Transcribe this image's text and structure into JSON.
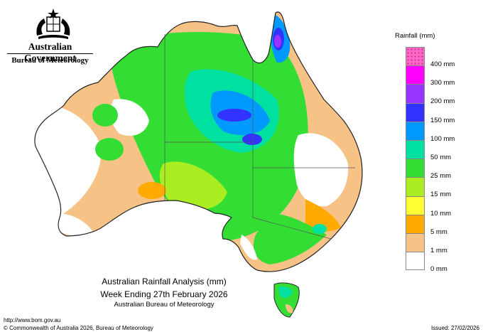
{
  "header": {
    "government": "Australian Government",
    "bureau": "Bureau of Meteorology"
  },
  "legend": {
    "title": "Rainfall (mm)",
    "items": [
      {
        "label": "400 mm",
        "color": "#ff66cc"
      },
      {
        "label": "300 mm",
        "color": "#ff00ff"
      },
      {
        "label": "200 mm",
        "color": "#9933ff"
      },
      {
        "label": "150 mm",
        "color": "#3333ff"
      },
      {
        "label": "100 mm",
        "color": "#0099ff"
      },
      {
        "label": "50 mm",
        "color": "#00e0a0"
      },
      {
        "label": "25 mm",
        "color": "#33dd33"
      },
      {
        "label": "15 mm",
        "color": "#aaee22"
      },
      {
        "label": "10 mm",
        "color": "#ffff33"
      },
      {
        "label": "5 mm",
        "color": "#ffaa00"
      },
      {
        "label": "1 mm",
        "color": "#f6c286"
      },
      {
        "label": "0 mm",
        "color": "#ffffff"
      }
    ]
  },
  "map": {
    "title_line1": "Australian Rainfall Analysis (mm)",
    "title_line2": "Week Ending 27th February 2026",
    "subtitle": "Australian Bureau of Meteorology"
  },
  "footer": {
    "url": "http://www.bom.gov.au",
    "copyright": "© Commonwealth of Australia 2026, Bureau of Meteorology",
    "issued": "Issued: 27/02/2026"
  }
}
